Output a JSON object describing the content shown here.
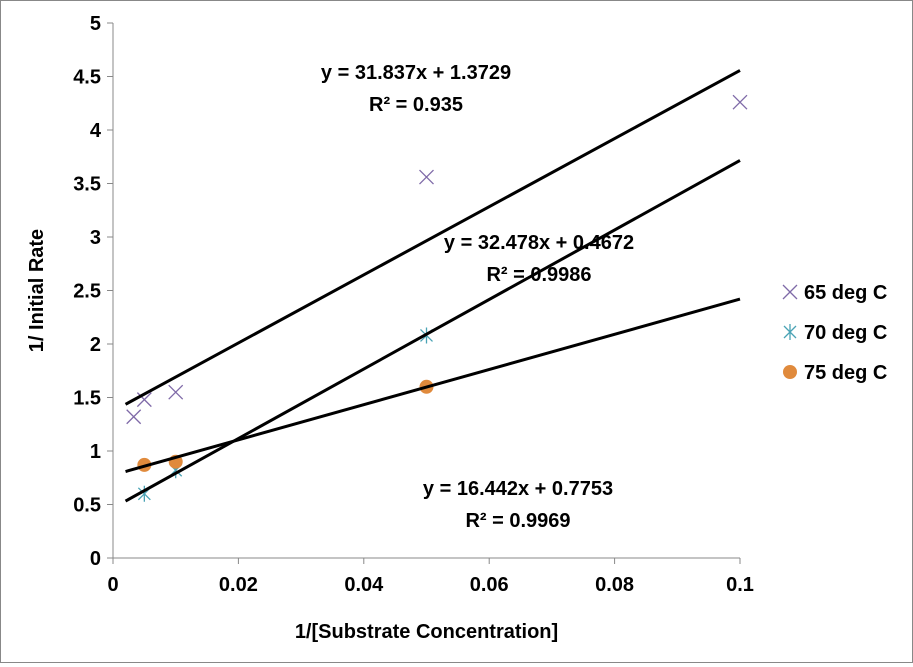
{
  "chart_data": {
    "type": "scatter",
    "title": "",
    "xlabel": "1/[Substrate Concentration]",
    "ylabel": "1/ Initial Rate",
    "xlim": [
      0,
      0.1
    ],
    "ylim": [
      0,
      5
    ],
    "xticks": [
      "0",
      "0.02",
      "0.04",
      "0.06",
      "0.08",
      "0.1"
    ],
    "yticks": [
      "0",
      "0.5",
      "1",
      "1.5",
      "2",
      "2.5",
      "3",
      "3.5",
      "4",
      "4.5",
      "5"
    ],
    "grid": false,
    "legend_placement": "right",
    "series": [
      {
        "name": "65 deg C",
        "marker": "x",
        "color": "#7f6aa8",
        "x": [
          0.0033,
          0.005,
          0.01,
          0.05,
          0.1
        ],
        "y": [
          1.32,
          1.48,
          1.55,
          3.56,
          4.26
        ],
        "trendline": {
          "slope": 31.837,
          "intercept": 1.3729,
          "equation": "y = 31.837x + 1.3729",
          "r2_label": "R",
          "r2_value": "² = 0.935"
        }
      },
      {
        "name": "70 deg C",
        "marker": "star",
        "color": "#4aa3b5",
        "x": [
          0.005,
          0.01,
          0.05
        ],
        "y": [
          0.6,
          0.82,
          2.08
        ],
        "trendline": {
          "slope": 32.478,
          "intercept": 0.4672,
          "equation": "y = 32.478x + 0.4672",
          "r2_label": "R",
          "r2_value": "² = 0.9986"
        }
      },
      {
        "name": "75 deg C",
        "marker": "circle",
        "color": "#e08a3c",
        "x": [
          0.005,
          0.01,
          0.05
        ],
        "y": [
          0.87,
          0.9,
          1.6
        ],
        "trendline": {
          "slope": 16.442,
          "intercept": 0.7753,
          "equation": "y = 16.442x + 0.7753",
          "r2_label": "R",
          "r2_value": "² = 0.9969"
        }
      }
    ]
  }
}
